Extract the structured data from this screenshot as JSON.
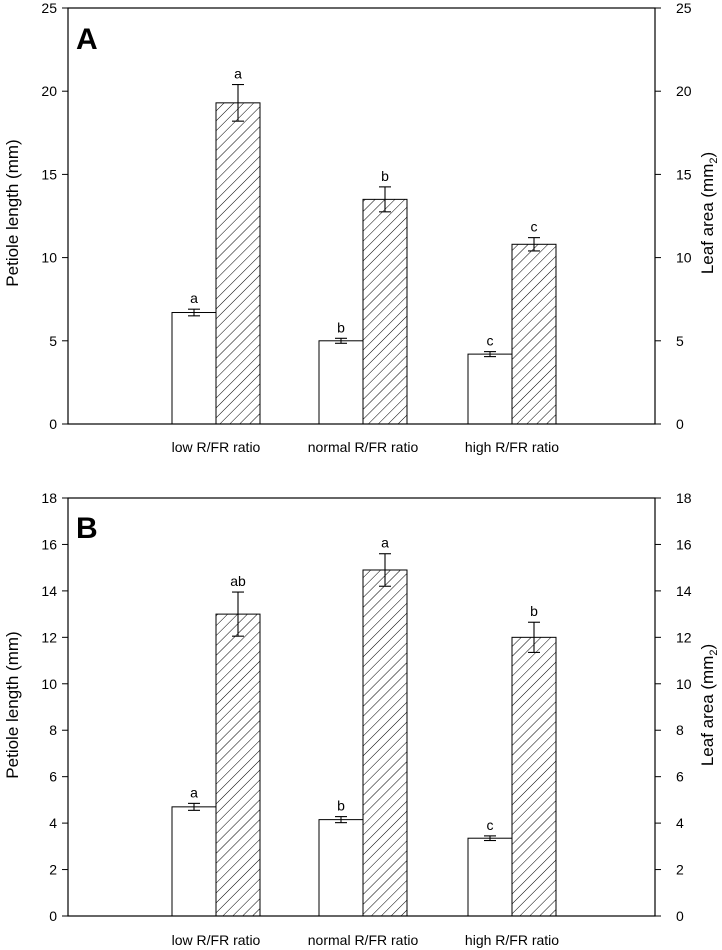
{
  "chart_data": [
    {
      "type": "bar",
      "panel_label": "A",
      "categories": [
        "low R/FR ratio",
        "normal R/FR ratio",
        "high R/FR ratio"
      ],
      "ylabel_left": "Petiole length (mm)",
      "ylabel_right": "Leaf area (mm",
      "ylabel_right_sub": "2",
      "ylabel_right_close": ")",
      "ylim_left": [
        0,
        25
      ],
      "ylim_right": [
        0,
        25
      ],
      "yticks_left": [
        0,
        5,
        10,
        15,
        20,
        25
      ],
      "yticks_right": [
        0,
        5,
        10,
        15,
        20,
        25
      ],
      "legend": "none",
      "series": [
        {
          "axis": "left",
          "fill": "open",
          "values": [
            6.7,
            5.0,
            4.2
          ],
          "errors": [
            0.2,
            0.15,
            0.15
          ],
          "significance": [
            "a",
            "b",
            "c"
          ]
        },
        {
          "axis": "right",
          "fill": "hatched",
          "values": [
            19.3,
            13.5,
            10.8
          ],
          "errors": [
            1.1,
            0.75,
            0.4
          ],
          "significance": [
            "a",
            "b",
            "c"
          ]
        }
      ]
    },
    {
      "type": "bar",
      "panel_label": "B",
      "categories": [
        "low R/FR ratio",
        "normal R/FR ratio",
        "high R/FR ratio"
      ],
      "ylabel_left": "Petiole length (mm)",
      "ylabel_right": "Leaf area (mm",
      "ylabel_right_sub": "2",
      "ylabel_right_close": ")",
      "ylim_left": [
        0,
        18
      ],
      "ylim_right": [
        0,
        18
      ],
      "yticks_left": [
        0,
        2,
        4,
        6,
        8,
        10,
        12,
        14,
        16,
        18
      ],
      "yticks_right": [
        0,
        2,
        4,
        6,
        8,
        10,
        12,
        14,
        16,
        18
      ],
      "legend": "none",
      "series": [
        {
          "axis": "left",
          "fill": "open",
          "values": [
            4.7,
            4.15,
            3.35
          ],
          "errors": [
            0.15,
            0.13,
            0.1
          ],
          "significance": [
            "a",
            "b",
            "c"
          ]
        },
        {
          "axis": "right",
          "fill": "hatched",
          "values": [
            13.0,
            14.9,
            12.0
          ],
          "errors": [
            0.95,
            0.7,
            0.65
          ],
          "significance": [
            "ab",
            "a",
            "b"
          ]
        }
      ]
    }
  ]
}
